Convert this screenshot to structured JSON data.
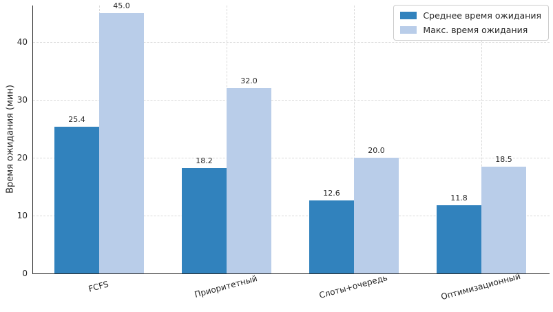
{
  "chart_data": {
    "type": "bar",
    "title": "",
    "categories": [
      "FCFS",
      "Приоритетный",
      "Слоты+очередь",
      "Оптимизационный"
    ],
    "series": [
      {
        "name": "Среднее время ожидания",
        "color": "#3182bd",
        "values": [
          25.4,
          18.2,
          12.6,
          11.8
        ]
      },
      {
        "name": "Макс. время ожидания",
        "color": "#b9cde9",
        "values": [
          45.0,
          32.0,
          20.0,
          18.5
        ]
      }
    ],
    "value_labels": [
      [
        "25.4",
        "18.2",
        "12.6",
        "11.8"
      ],
      [
        "45.0",
        "32.0",
        "20.0",
        "18.5"
      ]
    ],
    "xlabel": "",
    "ylabel": "Время ожидания (мин)",
    "ylim": [
      0,
      46.3
    ],
    "yticks": [
      "0",
      "10",
      "20",
      "30",
      "40"
    ],
    "grid": true,
    "grid_style": "dashed",
    "legend_position": "upper right",
    "colors": {
      "avg_bar": "#3182bd",
      "max_bar": "#b9cde9",
      "grid": "#d9d9d9",
      "axis": "#262626",
      "legend_border": "#cccccc"
    }
  }
}
